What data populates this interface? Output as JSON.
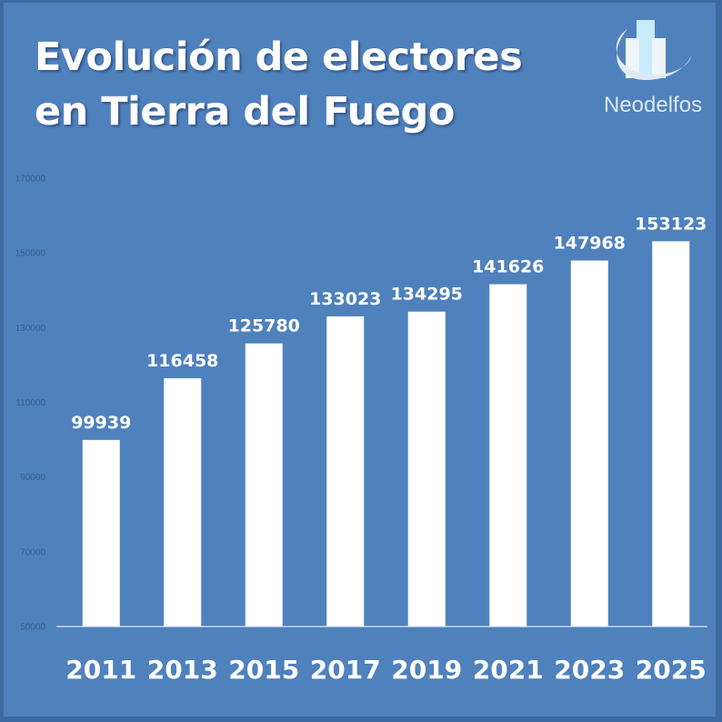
{
  "header": {
    "title_line1": "Evolución de electores",
    "title_line2": "en Tierra del Fuego"
  },
  "logo": {
    "icon": "bar-chart-swoosh-icon",
    "text": "Neodelfos"
  },
  "colors": {
    "background": "#4f81bd",
    "border": "#3d6aa0",
    "bar": "#ffffff",
    "axis_line": "#dfe8f3",
    "ytick_text": "#3b5f8c",
    "label_text": "#ffffff"
  },
  "chart_data": {
    "type": "bar",
    "title": "Evolución de electores en Tierra del Fuego",
    "xlabel": "",
    "ylabel": "",
    "categories": [
      "2011",
      "2013",
      "2015",
      "2017",
      "2019",
      "2021",
      "2023",
      "2025"
    ],
    "values": [
      99939,
      116458,
      125780,
      133023,
      134295,
      141626,
      147968,
      153123
    ],
    "data_labels": [
      "99939",
      "116458",
      "125780",
      "133023",
      "134295",
      "141626",
      "147968",
      "153123"
    ],
    "ylim": [
      50000,
      170000
    ],
    "yticks": [
      50000,
      70000,
      90000,
      110000,
      130000,
      150000,
      170000
    ],
    "ytick_labels": [
      "50000",
      "70000",
      "90000",
      "110000",
      "130000",
      "150000",
      "170000"
    ],
    "grid": false,
    "legend": "none"
  }
}
